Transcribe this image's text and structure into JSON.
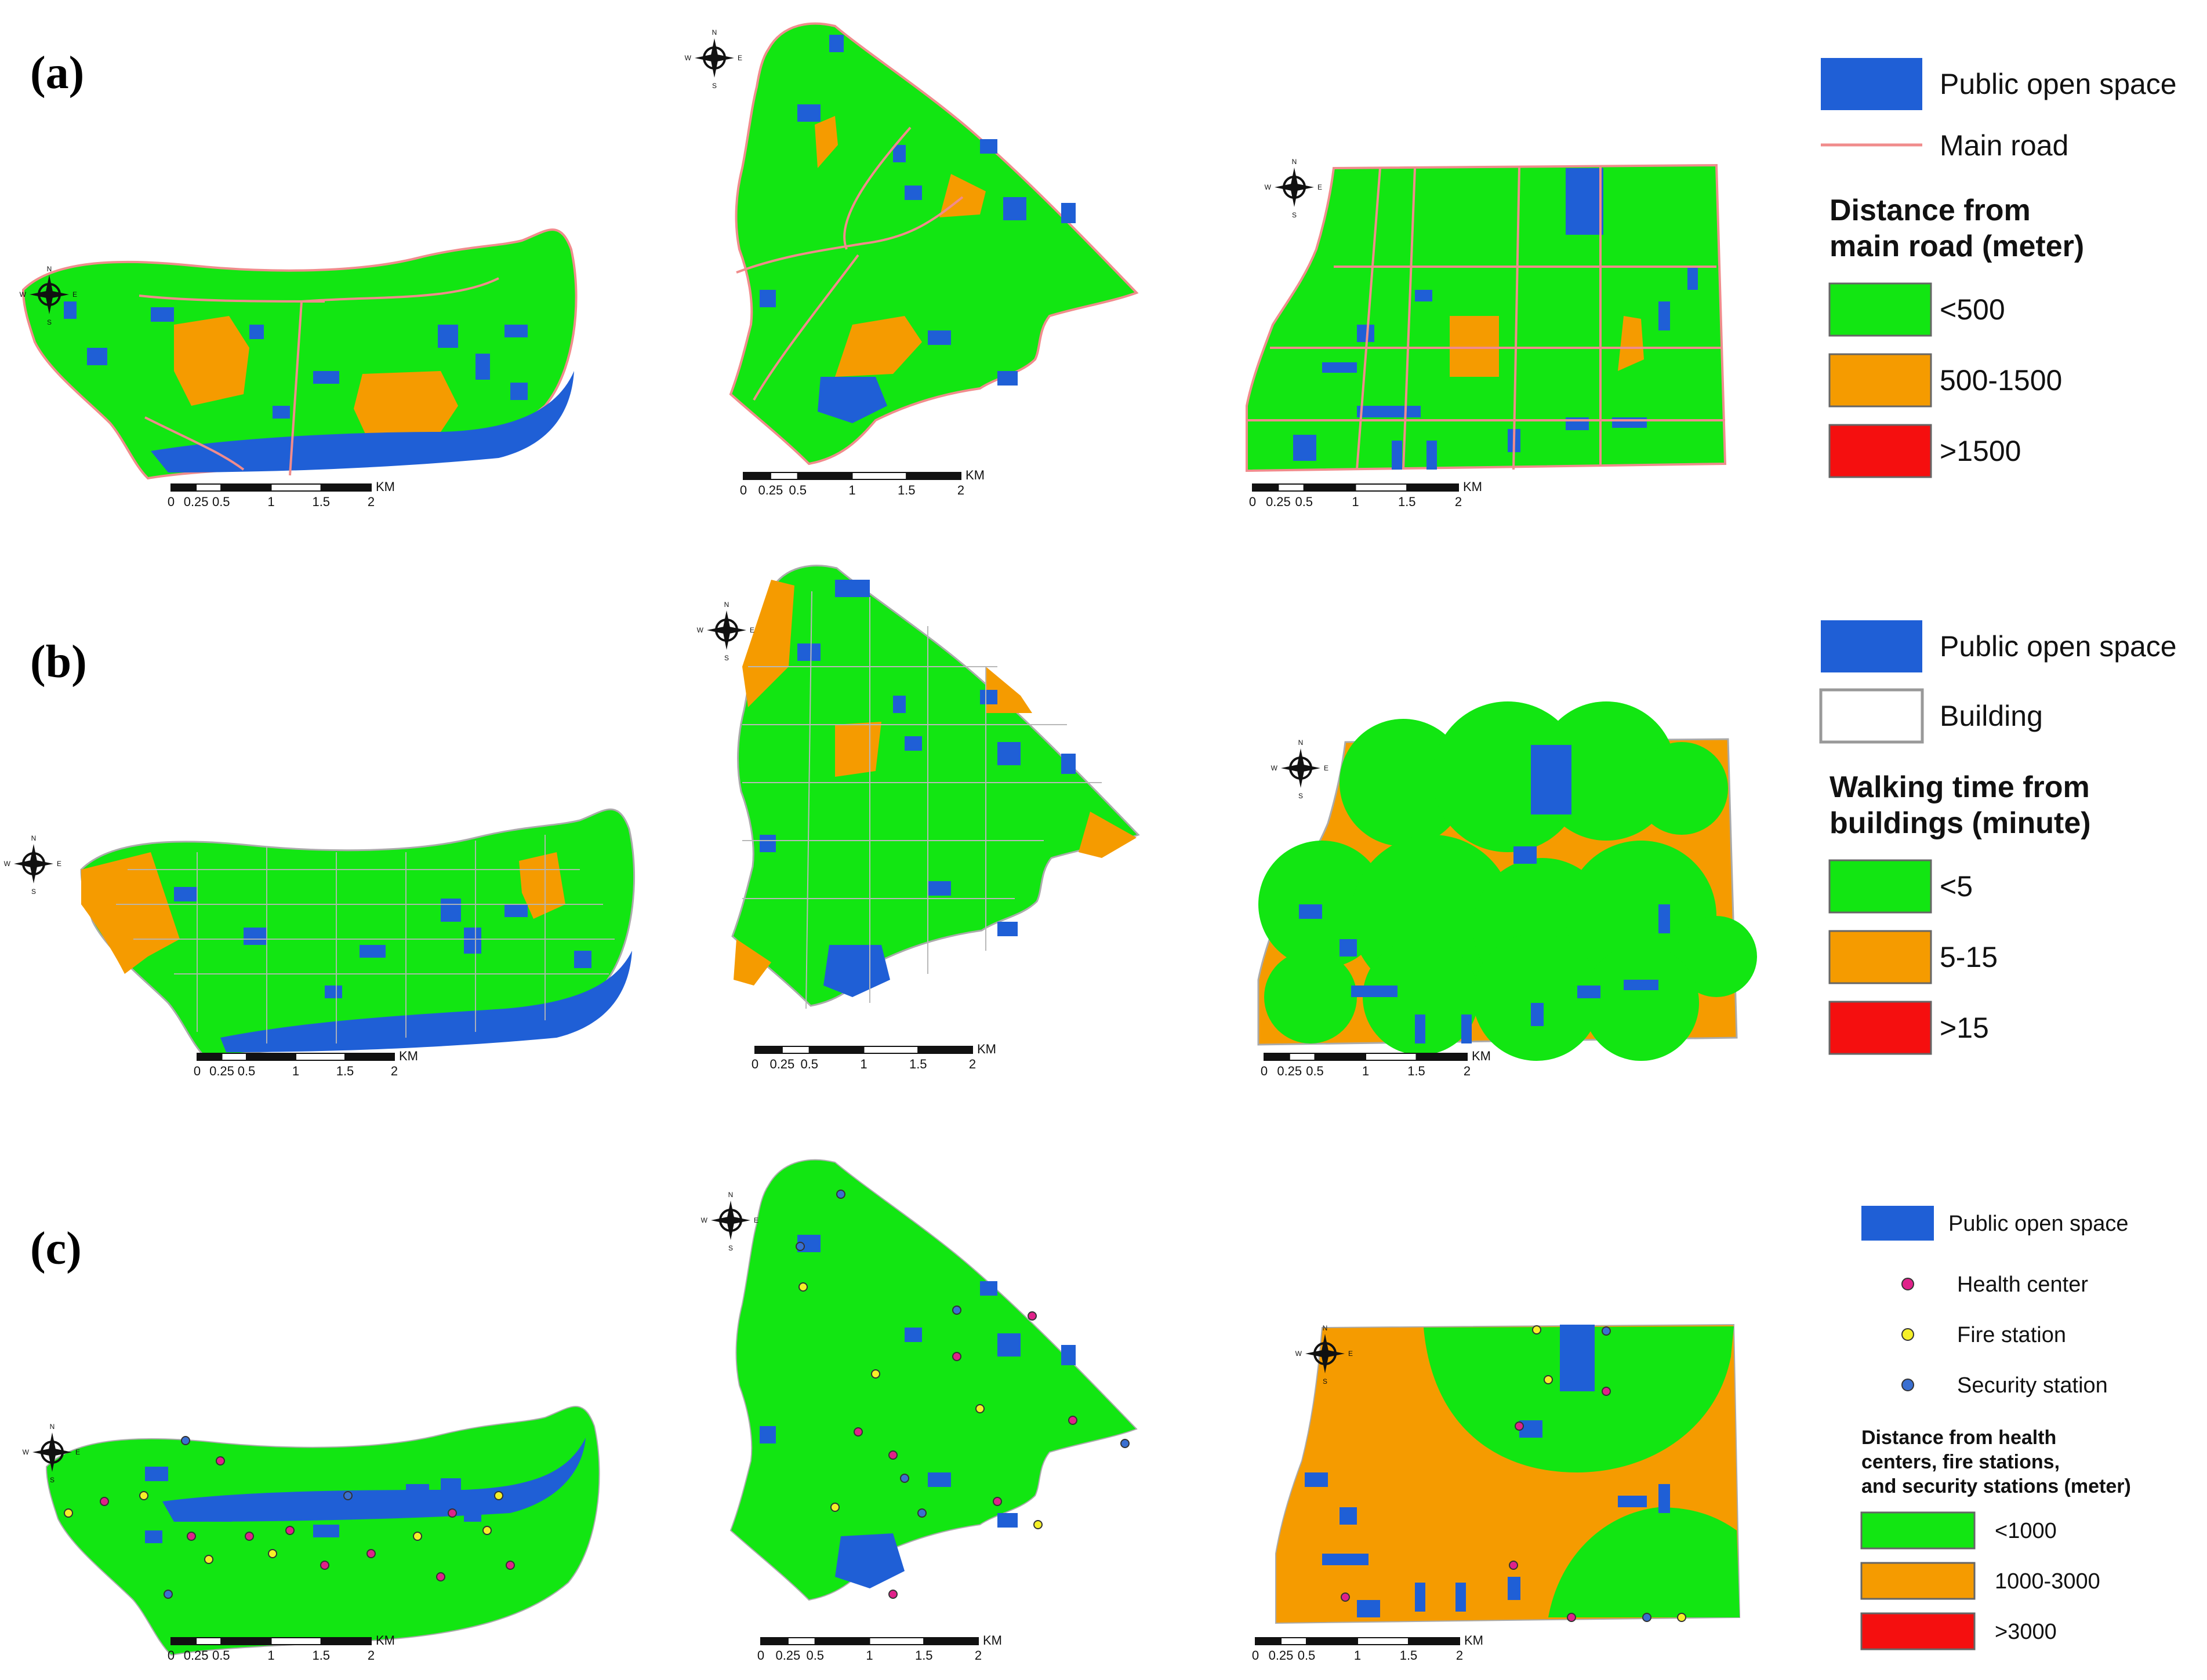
{
  "panels": [
    {
      "label": "(a)",
      "legend": {
        "items": [
          {
            "kind": "swatch",
            "label": "Public open space",
            "color": "#1f5fd6"
          },
          {
            "kind": "line",
            "label": "Main road",
            "color": "#f08c8c"
          }
        ],
        "title_lines": [
          "Distance from",
          "main road (meter)"
        ],
        "classes": [
          {
            "label": "<500",
            "color": "#12e612"
          },
          {
            "label": "500-1500",
            "color": "#f59b00"
          },
          {
            "label": ">1500",
            "color": "#f50f0f"
          }
        ]
      }
    },
    {
      "label": "(b)",
      "legend": {
        "items": [
          {
            "kind": "swatch",
            "label": "Public open space",
            "color": "#1f5fd6"
          },
          {
            "kind": "outline",
            "label": "Building",
            "color": "#ffffff"
          }
        ],
        "title_lines": [
          "Walking time from",
          "buildings (minute)"
        ],
        "classes": [
          {
            "label": "<5",
            "color": "#12e612"
          },
          {
            "label": "5-15",
            "color": "#f59b00"
          },
          {
            "label": ">15",
            "color": "#f50f0f"
          }
        ]
      }
    },
    {
      "label": "(c)",
      "legend": {
        "items": [
          {
            "kind": "swatch",
            "label": "Public open space",
            "color": "#1f5fd6"
          },
          {
            "kind": "dot",
            "label": "Health center",
            "color": "#e0218a"
          },
          {
            "kind": "dot",
            "label": "Fire station",
            "color": "#f5f028"
          },
          {
            "kind": "dot",
            "label": "Security station",
            "color": "#3a6fd1"
          }
        ],
        "title_lines": [
          "Distance from health",
          "centers, fire stations,",
          "and security stations (meter)"
        ],
        "classes": [
          {
            "label": "<1000",
            "color": "#12e612"
          },
          {
            "label": "1000-3000",
            "color": "#f59b00"
          },
          {
            "label": ">3000",
            "color": "#f50f0f"
          }
        ]
      }
    }
  ],
  "scale_bar": {
    "ticks": [
      "0",
      "0.25",
      "0.5",
      "1",
      "1.5",
      "2"
    ],
    "unit": "KM"
  },
  "north_arrow": {
    "n": "N",
    "s": "S",
    "e": "E",
    "w": "W"
  },
  "colors": {
    "green": "#12e612",
    "orange": "#f59b00",
    "blue": "#1f5fd6",
    "road": "#f08c8c",
    "building_line": "#b8b8b8"
  }
}
